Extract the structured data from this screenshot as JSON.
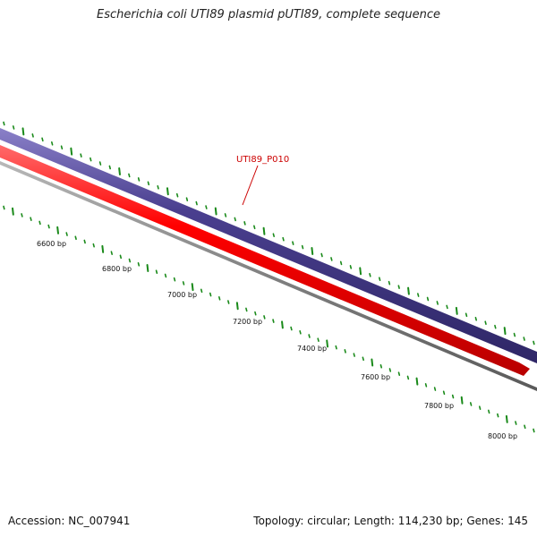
{
  "header": {
    "title": "Escherichia coli UTI89 plasmid pUTI89, complete sequence"
  },
  "footer": {
    "accession": "Accession: NC_007941",
    "summary": "Topology: circular; Length: 114,230 bp; Genes: 145"
  },
  "map": {
    "scale_labels": [
      "6600 bp",
      "6800 bp",
      "7000 bp",
      "7200 bp",
      "7400 bp",
      "7600 bp",
      "7800 bp",
      "8000 bp"
    ],
    "gene_label": "UTI89_P010",
    "colors": {
      "outer_ring": "#4a3f8f",
      "gene": "#ff0000",
      "backbone": "#808080",
      "ticks": "#1a8a1a",
      "gene_label": "#cc0000"
    }
  }
}
